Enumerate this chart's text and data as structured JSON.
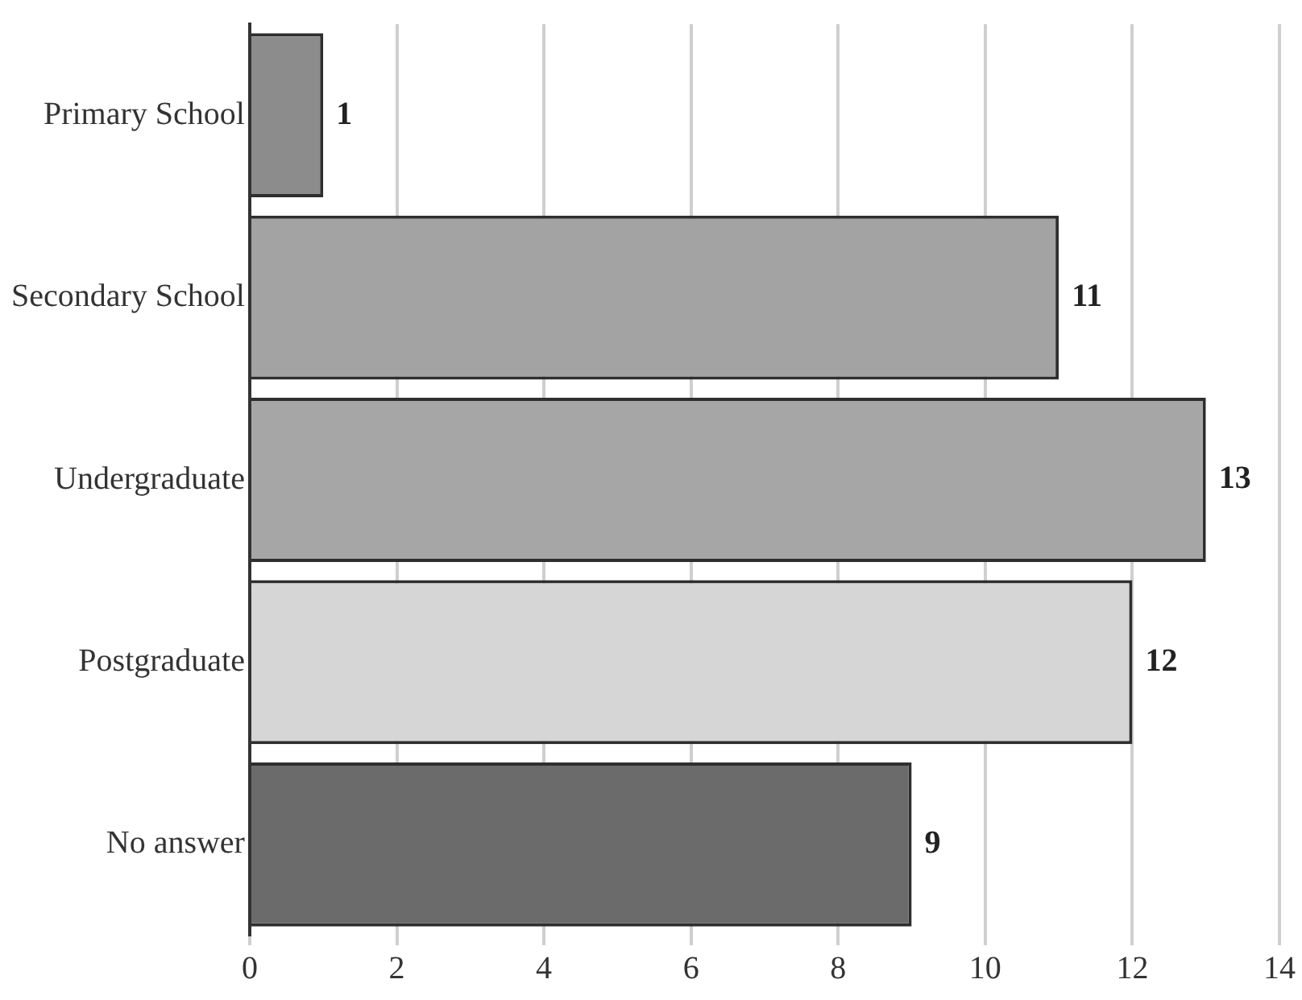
{
  "chart_data": {
    "type": "bar",
    "orientation": "horizontal",
    "categories": [
      "Primary School",
      "Secondary School",
      "Undergraduate",
      "Postgraduate",
      "No answer"
    ],
    "values": [
      1,
      11,
      13,
      12,
      9
    ],
    "colors": [
      "#8c8c8c",
      "#a3a3a3",
      "#a6a6a6",
      "#d6d6d6",
      "#6b6b6b"
    ],
    "xlim": [
      0,
      14
    ],
    "xticks": [
      0,
      2,
      4,
      6,
      8,
      10,
      12,
      14
    ],
    "grid": "x",
    "data_labels": true
  }
}
